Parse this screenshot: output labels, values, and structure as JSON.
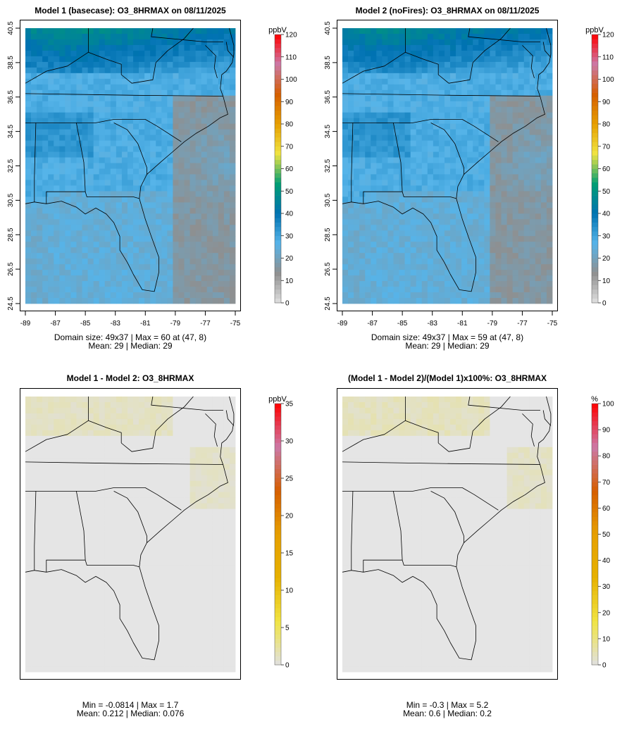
{
  "colors": {
    "ocean": "#e8e8ec",
    "diff_background": "#e5e5e5",
    "border": "#000000",
    "ramp_concentration": [
      "#e0e0e0",
      "#8f8f8f",
      "#56b4e9",
      "#0072b2",
      "#009e73",
      "#f0e442",
      "#e69f00",
      "#d55e00",
      "#cc79a7",
      "#ff0000"
    ],
    "ramp_difference": [
      "#e0e0e0",
      "#f0e442",
      "#e6b100",
      "#e69f00",
      "#d55e00",
      "#cc79a7",
      "#ff0000"
    ]
  },
  "chart_data": [
    {
      "id": "model1",
      "type": "heatmap",
      "title": "Model 1 (basecase): O3_8HRMAX on 08/11/2025",
      "x_ticks": [
        "-89",
        "-87",
        "-85",
        "-83",
        "-81",
        "-79",
        "-77",
        "-75"
      ],
      "y_ticks": [
        "24.5",
        "26.5",
        "28.5",
        "30.5",
        "32.5",
        "34.5",
        "36.5",
        "38.5",
        "40.5"
      ],
      "xlim": [
        -89,
        -75
      ],
      "ylim": [
        24.5,
        40.5
      ],
      "colorbar": {
        "unit": "ppbV",
        "ticks": [
          "0",
          "10",
          "20",
          "30",
          "40",
          "50",
          "60",
          "70",
          "80",
          "90",
          "100",
          "110",
          "120"
        ],
        "range": [
          0,
          120
        ]
      },
      "grid_size": "49x37",
      "stats": {
        "line1": "Domain size: 49x37 | Max = 60 at (47, 8)",
        "line2": "Mean: 29 |  Median: 29"
      },
      "max": 60,
      "mean": 29,
      "median": 29
    },
    {
      "id": "model2",
      "type": "heatmap",
      "title": "Model 2 (noFires): O3_8HRMAX on 08/11/2025",
      "x_ticks": [
        "-89",
        "-87",
        "-85",
        "-83",
        "-81",
        "-79",
        "-77",
        "-75"
      ],
      "y_ticks": [
        "24.5",
        "26.5",
        "28.5",
        "30.5",
        "32.5",
        "34.5",
        "36.5",
        "38.5",
        "40.5"
      ],
      "xlim": [
        -89,
        -75
      ],
      "ylim": [
        24.5,
        40.5
      ],
      "colorbar": {
        "unit": "ppbV",
        "ticks": [
          "0",
          "10",
          "20",
          "30",
          "40",
          "50",
          "60",
          "70",
          "80",
          "90",
          "100",
          "110",
          "120"
        ],
        "range": [
          0,
          120
        ]
      },
      "grid_size": "49x37",
      "stats": {
        "line1": "Domain size: 49x37 | Max = 59 at (47, 8)",
        "line2": "Mean: 29 |  Median: 29"
      },
      "max": 59,
      "mean": 29,
      "median": 29
    },
    {
      "id": "diff",
      "type": "heatmap",
      "title": "Model 1 - Model 2: O3_8HRMAX",
      "colorbar": {
        "unit": "ppbV",
        "ticks": [
          "0",
          "5",
          "10",
          "15",
          "20",
          "25",
          "30",
          "35"
        ],
        "range": [
          0,
          35
        ]
      },
      "stats": {
        "line1": "Min = -0.0814 | Max = 1.7",
        "line2": "Mean: 0.212 |  Median: 0.076"
      },
      "min": -0.0814,
      "max": 1.7,
      "mean": 0.212,
      "median": 0.076
    },
    {
      "id": "pct",
      "type": "heatmap",
      "title": "(Model 1 - Model 2)/(Model 1)x100%: O3_8HRMAX",
      "colorbar": {
        "unit": "%",
        "ticks": [
          "0",
          "10",
          "20",
          "30",
          "40",
          "50",
          "60",
          "70",
          "80",
          "90",
          "100"
        ],
        "range": [
          0,
          100
        ]
      },
      "stats": {
        "line1": "Min = -0.3 | Max = 5.2",
        "line2": "Mean: 0.6 |  Median: 0.2"
      },
      "min": -0.3,
      "max": 5.2,
      "mean": 0.6,
      "median": 0.2
    }
  ]
}
